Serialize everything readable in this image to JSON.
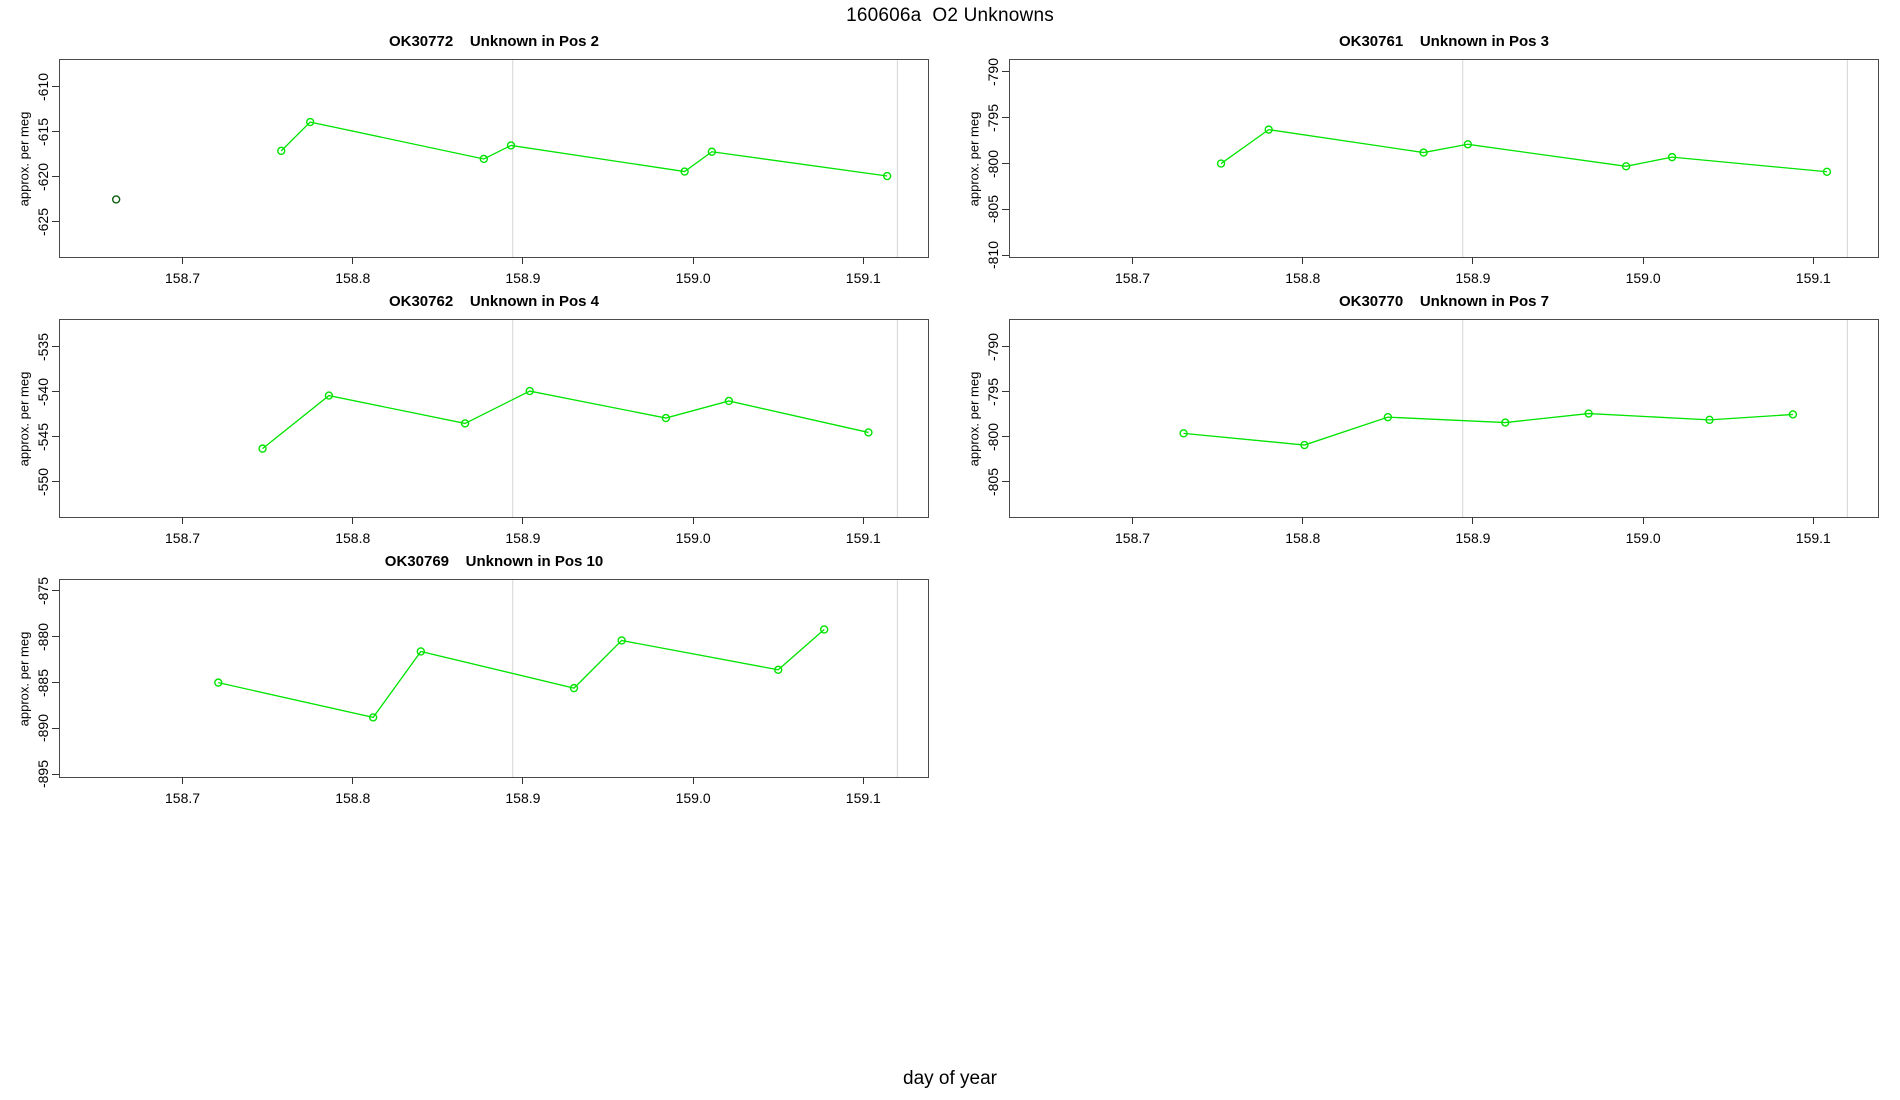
{
  "figure": {
    "title": "160606a  O2 Unknowns",
    "xlabel": "day of year",
    "background": "#ffffff",
    "line_green": "#00e400",
    "dark_green": "#0b5e0b",
    "grid_color": "#d4d4d4",
    "box_color": "#4a4a4a",
    "axis_x": {
      "lim": [
        158.628,
        159.138
      ],
      "tick_values": [
        158.7,
        158.8,
        158.9,
        159.0,
        159.1
      ],
      "tick_labels": [
        "158.7",
        "158.8",
        "158.9",
        "159.0",
        "159.1"
      ],
      "vlines": [
        158.894,
        159.12
      ]
    }
  },
  "chart_data": [
    {
      "id": "OK30772",
      "type": "line",
      "title": "OK30772    Unknown in Pos 2",
      "ylabel": "approx. per meg",
      "grid": {
        "row": 0,
        "col": 0
      },
      "ylim": [
        -628.9,
        -607.0
      ],
      "ytick_values": [
        -610,
        -615,
        -620,
        -625
      ],
      "ytick_labels": [
        "-610",
        "-615",
        "-620",
        "-625"
      ],
      "series": [
        {
          "name": "isolated-point",
          "color": "#0b5e0b",
          "line": false,
          "x": [
            158.661
          ],
          "y": [
            -622.5
          ]
        },
        {
          "name": "runs",
          "color": "#00e400",
          "line": true,
          "x": [
            158.758,
            158.775,
            158.877,
            158.893,
            158.995,
            159.011,
            159.114
          ],
          "y": [
            -617.1,
            -613.9,
            -618.0,
            -616.5,
            -619.4,
            -617.2,
            -619.9
          ]
        }
      ]
    },
    {
      "id": "OK30761",
      "type": "line",
      "title": "OK30761    Unknown in Pos 3",
      "ylabel": "approx. per meg",
      "grid": {
        "row": 0,
        "col": 1
      },
      "ylim": [
        -810.2,
        -788.7
      ],
      "ytick_values": [
        -790,
        -795,
        -800,
        -805,
        -810
      ],
      "ytick_labels": [
        "-790",
        "-795",
        "-800",
        "-805",
        "-810"
      ],
      "series": [
        {
          "name": "runs",
          "color": "#00e400",
          "line": true,
          "x": [
            158.752,
            158.78,
            158.871,
            158.897,
            158.99,
            159.017,
            159.108
          ],
          "y": [
            -800.0,
            -796.3,
            -798.8,
            -797.9,
            -800.3,
            -799.3,
            -800.9
          ]
        }
      ]
    },
    {
      "id": "OK30762",
      "type": "line",
      "title": "OK30762    Unknown in Pos 4",
      "ylabel": "approx. per meg",
      "grid": {
        "row": 1,
        "col": 0
      },
      "ylim": [
        -553.9,
        -532.0
      ],
      "ytick_values": [
        -535,
        -540,
        -545,
        -550
      ],
      "ytick_labels": [
        "-535",
        "-540",
        "-545",
        "-550"
      ],
      "series": [
        {
          "name": "runs",
          "color": "#00e400",
          "line": true,
          "x": [
            158.747,
            158.786,
            158.866,
            158.904,
            158.984,
            159.021,
            159.103
          ],
          "y": [
            -546.3,
            -540.4,
            -543.5,
            -539.9,
            -542.9,
            -541.0,
            -544.5
          ]
        }
      ]
    },
    {
      "id": "OK30770",
      "type": "line",
      "title": "OK30770    Unknown in Pos 7",
      "ylabel": "approx. per meg",
      "grid": {
        "row": 1,
        "col": 1
      },
      "ylim": [
        -808.9,
        -787.0
      ],
      "ytick_values": [
        -790,
        -795,
        -800,
        -805
      ],
      "ytick_labels": [
        "-790",
        "-795",
        "-800",
        "-805"
      ],
      "series": [
        {
          "name": "runs",
          "color": "#00e400",
          "line": true,
          "x": [
            158.73,
            158.801,
            158.85,
            158.919,
            158.968,
            159.039,
            159.088
          ],
          "y": [
            -799.6,
            -800.9,
            -797.8,
            -798.4,
            -797.4,
            -798.1,
            -797.5
          ]
        }
      ]
    },
    {
      "id": "OK30769",
      "type": "line",
      "title": "OK30769    Unknown in Pos 10",
      "ylabel": "approx. per meg",
      "grid": {
        "row": 2,
        "col": 0
      },
      "ylim": [
        -895.3,
        -873.8
      ],
      "ytick_values": [
        -875,
        -880,
        -885,
        -890,
        -895
      ],
      "ytick_labels": [
        "-875",
        "-880",
        "-885",
        "-890",
        "-895"
      ],
      "series": [
        {
          "name": "runs",
          "color": "#00e400",
          "line": true,
          "x": [
            158.721,
            158.812,
            158.84,
            158.93,
            158.958,
            159.05,
            159.077
          ],
          "y": [
            -885.0,
            -888.8,
            -881.6,
            -885.6,
            -880.4,
            -883.6,
            -879.2
          ]
        }
      ]
    }
  ]
}
